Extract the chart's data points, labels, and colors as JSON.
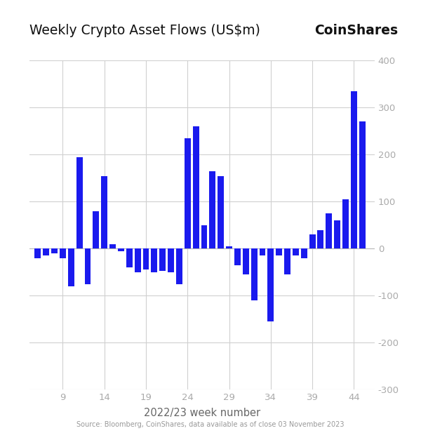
{
  "title": "Weekly Crypto Asset Flows (US$m)",
  "brand": "CoinShares",
  "xlabel": "2022/23 week number",
  "source": "Source: Bloomberg, CoinShares, data available as of close 03 November 2023",
  "bar_color": "#1a1aee",
  "background_color": "#ffffff",
  "grid_color": "#d0d0d0",
  "ylim": [
    -300,
    400
  ],
  "yticks": [
    -300,
    -200,
    -100,
    0,
    100,
    200,
    300,
    400
  ],
  "xticks": [
    9,
    14,
    19,
    24,
    29,
    34,
    39,
    44
  ],
  "weeks": [
    6,
    7,
    8,
    9,
    10,
    11,
    12,
    13,
    14,
    15,
    16,
    17,
    18,
    19,
    20,
    21,
    22,
    23,
    24,
    25,
    26,
    27,
    28,
    29,
    30,
    31,
    32,
    33,
    34,
    35,
    36,
    37,
    38,
    39,
    40,
    41,
    42,
    43,
    44,
    45
  ],
  "values": [
    -20,
    -15,
    -10,
    -20,
    -80,
    195,
    -75,
    80,
    155,
    10,
    -5,
    -40,
    -50,
    -45,
    -50,
    -48,
    -50,
    -75,
    235,
    260,
    50,
    165,
    155,
    5,
    -35,
    -55,
    -110,
    -15,
    -155,
    -15,
    -55,
    -15,
    -20,
    30,
    40,
    75,
    60,
    105,
    335,
    270
  ]
}
